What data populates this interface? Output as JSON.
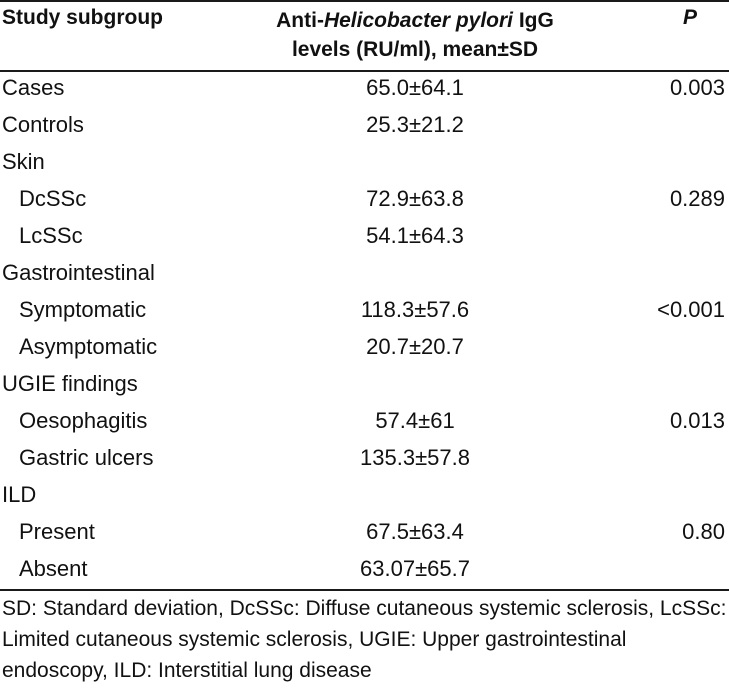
{
  "header": {
    "col1": "Study subgroup",
    "col2_prefix": "Anti-",
    "col2_italic": "Helicobacter pylori",
    "col2_suffix": " IgG",
    "col2_line2": "levels (RU/ml), mean±SD",
    "col3": "P"
  },
  "rows": [
    {
      "label": "Cases",
      "value": "65.0±64.1",
      "p": "0.003"
    },
    {
      "label": "Controls",
      "value": "25.3±21.2",
      "p": ""
    },
    {
      "label": "Skin",
      "value": "",
      "p": ""
    },
    {
      "label": "DcSSc",
      "value": "72.9±63.8",
      "p": "0.289"
    },
    {
      "label": "LcSSc",
      "value": "54.1±64.3",
      "p": ""
    },
    {
      "label": "Gastrointestinal",
      "value": "",
      "p": ""
    },
    {
      "label": "Symptomatic",
      "value": "118.3±57.6",
      "p": "<0.001"
    },
    {
      "label": "Asymptomatic",
      "value": "20.7±20.7",
      "p": ""
    },
    {
      "label": "UGIE findings",
      "value": "",
      "p": ""
    },
    {
      "label": "Oesophagitis",
      "value": "57.4±61",
      "p": "0.013"
    },
    {
      "label": "Gastric ulcers",
      "value": "135.3±57.8",
      "p": ""
    },
    {
      "label": "ILD",
      "value": "",
      "p": ""
    },
    {
      "label": "Present",
      "value": "67.5±63.4",
      "p": "0.80"
    },
    {
      "label": "Absent",
      "value": "63.07±65.7",
      "p": ""
    }
  ],
  "footnote": "SD: Standard deviation, DcSSc: Diffuse cutaneous systemic sclerosis, LcSSc: Limited cutaneous systemic sclerosis, UGIE: Upper gastrointestinal endoscopy, ILD: Interstitial lung disease"
}
